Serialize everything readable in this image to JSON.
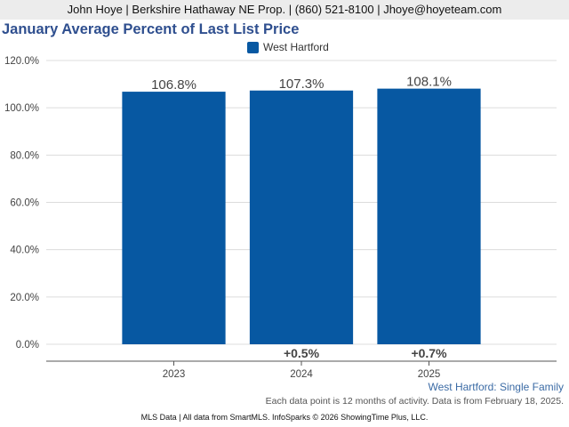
{
  "header": {
    "agent_line": "John Hoye | Berkshire Hathaway NE Prop. | (860) 521-8100 | Jhoye@hoyeteam.com"
  },
  "chart_data": {
    "type": "bar",
    "title": "January Average Percent of Last List Price",
    "categories": [
      "2023",
      "2024",
      "2025"
    ],
    "series": [
      {
        "name": "West Hartford",
        "values": [
          106.8,
          107.3,
          108.1
        ],
        "value_labels": [
          "106.8%",
          "107.3%",
          "108.1%"
        ],
        "change_labels": [
          "",
          "+0.5%",
          "+0.7%"
        ],
        "color": "#0758a2"
      }
    ],
    "yticks": [
      "0.0%",
      "20.0%",
      "40.0%",
      "60.0%",
      "80.0%",
      "100.0%",
      "120.0%"
    ],
    "ylim": [
      0,
      120
    ],
    "grid": true,
    "legend_position": "top-center"
  },
  "footer": {
    "subtitle": "West Hartford: Single Family",
    "note": "Each data point is 12 months of activity. Data is from February 18, 2025.",
    "source": "MLS Data | All data from SmartMLS. InfoSparks © 2026 ShowingTime Plus, LLC."
  }
}
